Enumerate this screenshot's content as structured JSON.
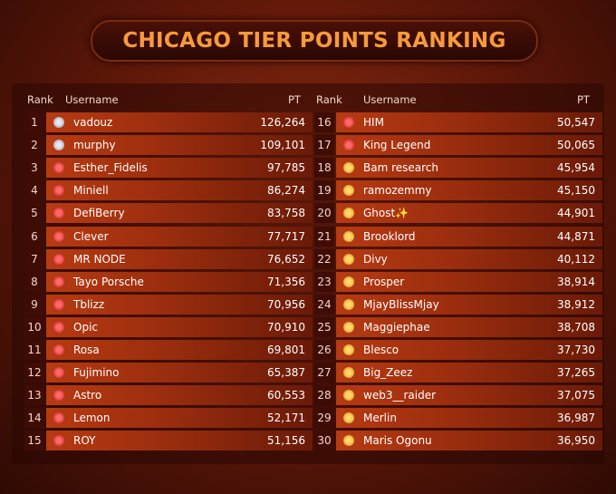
{
  "title": "CHICAGO TIER POINTS RANKING",
  "table": {
    "columns": [
      "Rank",
      "Username",
      "PT"
    ],
    "rows": [
      [
        1,
        "vadouz",
        "126,264"
      ],
      [
        2,
        "murphy",
        "109,101"
      ],
      [
        3,
        "Esther_Fidelis",
        "97,785"
      ],
      [
        4,
        "Miniell",
        "86,274"
      ],
      [
        5,
        "DefiBerry",
        "83,758"
      ],
      [
        6,
        "Clever",
        "77,717"
      ],
      [
        7,
        "MR NODE",
        "76,652"
      ],
      [
        8,
        "Tayo Porsche",
        "71,356"
      ],
      [
        9,
        "Tblizz",
        "70,956"
      ],
      [
        10,
        "Opic",
        "70,910"
      ],
      [
        11,
        "Rosa",
        "69,801"
      ],
      [
        12,
        "Fujimino",
        "65,387"
      ],
      [
        13,
        "Astro",
        "60,553"
      ],
      [
        14,
        "Lemon",
        "52,171"
      ],
      [
        15,
        "ROY",
        "51,156"
      ],
      [
        16,
        "HIM",
        "50,547"
      ],
      [
        17,
        "King Legend",
        "50,065"
      ],
      [
        18,
        "Bam research",
        "45,954"
      ],
      [
        19,
        "ramozemmy",
        "45,150"
      ],
      [
        20,
        "Ghost✨",
        "44,901"
      ],
      [
        21,
        "Brooklord",
        "44,871"
      ],
      [
        22,
        "Divy",
        "40,112"
      ],
      [
        23,
        "Prosper",
        "38,914"
      ],
      [
        24,
        "MjayBlissMjay",
        "38,912"
      ],
      [
        25,
        "Maggiephae",
        "38,708"
      ],
      [
        26,
        "Blesco",
        "37,730"
      ],
      [
        27,
        "Big_Zeez",
        "37,265"
      ],
      [
        28,
        "web3__raider",
        "37,075"
      ],
      [
        29,
        "Merlin",
        "36,987"
      ],
      [
        30,
        "Maris Ogonu",
        "36,950"
      ]
    ]
  }
}
